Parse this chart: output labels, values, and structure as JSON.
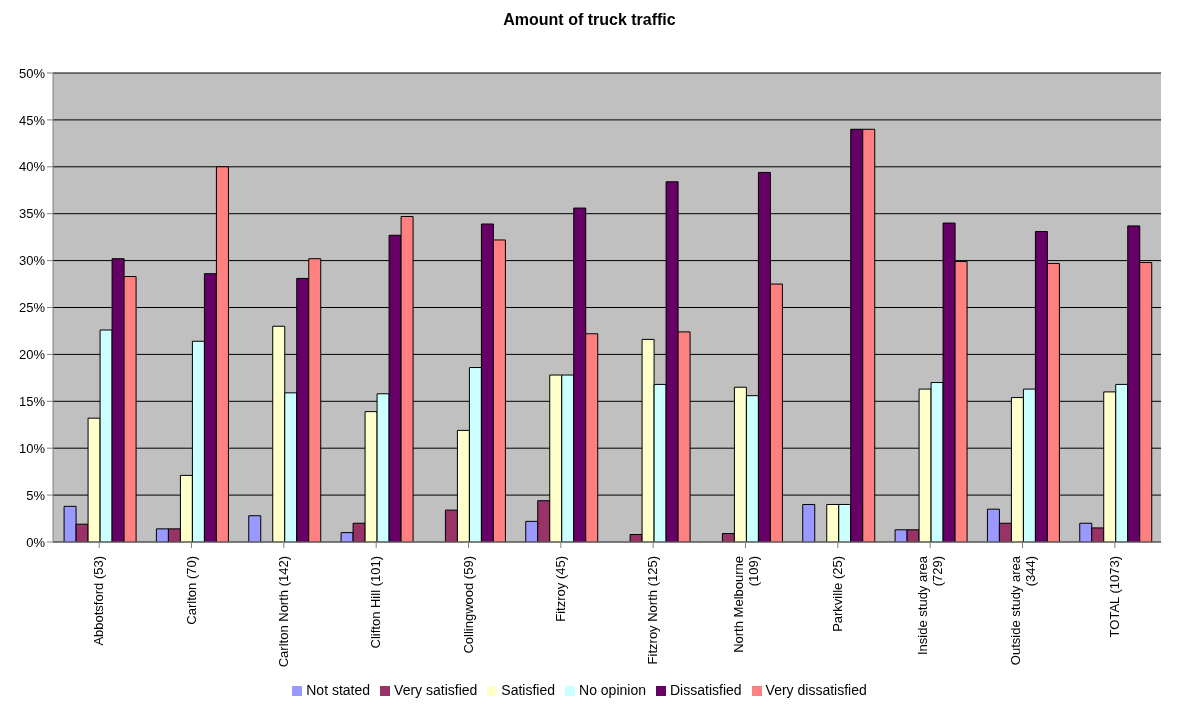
{
  "chart_data": {
    "type": "bar",
    "title": "Amount of truck traffic",
    "categories": [
      "Abbotsford (53)",
      "Carlton (70)",
      "Carlton North (142)",
      "Clifton Hill (101)",
      "Collingwood (59)",
      "Fitzroy (45)",
      "Fitzroy North (125)",
      "North Melbourne (109)",
      "Parkville (25)",
      "Inside study area (729)",
      "Outside study area (344)",
      "TOTAL (1073)"
    ],
    "series": [
      {
        "name": "Not stated",
        "color": "#9999ff",
        "values": [
          3.8,
          1.4,
          2.8,
          1.0,
          0,
          2.2,
          0,
          0,
          4.0,
          1.3,
          3.5,
          2.0
        ]
      },
      {
        "name": "Very satisfied",
        "color": "#993366",
        "values": [
          1.9,
          1.4,
          0,
          2.0,
          3.4,
          4.4,
          0.8,
          0.9,
          0,
          1.3,
          2.0,
          1.5
        ]
      },
      {
        "name": "Satisfied",
        "color": "#ffffcc",
        "values": [
          13.2,
          7.1,
          23.0,
          13.9,
          11.9,
          17.8,
          21.6,
          16.5,
          4.0,
          16.3,
          15.4,
          16.0
        ]
      },
      {
        "name": "No opinion",
        "color": "#ccffff",
        "values": [
          22.6,
          21.4,
          15.9,
          15.8,
          18.6,
          17.8,
          16.8,
          15.6,
          4.0,
          17.0,
          16.3,
          16.8
        ]
      },
      {
        "name": "Dissatisfied",
        "color": "#660066",
        "values": [
          30.2,
          28.6,
          28.1,
          32.7,
          33.9,
          35.6,
          38.4,
          39.4,
          44.0,
          34.0,
          33.1,
          33.7
        ]
      },
      {
        "name": "Very dissatisfied",
        "color": "#ff8080",
        "values": [
          28.3,
          40.0,
          30.2,
          34.7,
          32.2,
          22.2,
          22.4,
          27.5,
          44.0,
          29.9,
          29.7,
          29.8
        ]
      }
    ],
    "ylim": [
      0,
      50
    ],
    "yticks": [
      {
        "value": 0,
        "label": "0%"
      },
      {
        "value": 5,
        "label": "5%"
      },
      {
        "value": 10,
        "label": "10%"
      },
      {
        "value": 15,
        "label": "15%"
      },
      {
        "value": 20,
        "label": "20%"
      },
      {
        "value": 25,
        "label": "25%"
      },
      {
        "value": 30,
        "label": "30%"
      },
      {
        "value": 35,
        "label": "35%"
      },
      {
        "value": 40,
        "label": "40%"
      },
      {
        "value": 45,
        "label": "45%"
      },
      {
        "value": 50,
        "label": "50%"
      }
    ],
    "grid": "y",
    "legend": "bottom"
  }
}
